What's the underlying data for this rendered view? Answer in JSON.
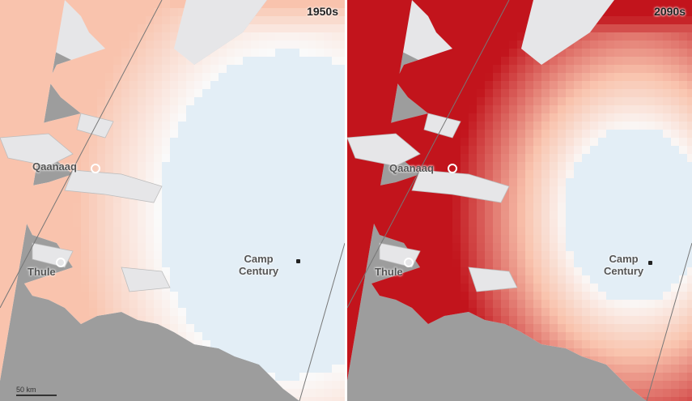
{
  "panels": [
    {
      "era": "1950s",
      "intensity": 0.35
    },
    {
      "era": "2090s",
      "intensity": 1.0
    }
  ],
  "places": {
    "qaanaaq": "Qaanaaq",
    "thule": "Thule",
    "camp_line1": "Camp",
    "camp_line2": "Century"
  },
  "scale_label": "50 km",
  "colors": {
    "land": "#e6e6e8",
    "ocean": "#9d9d9d",
    "ice_cool": "#e3eef6",
    "melt_light": "#f9c3ad",
    "melt_dark": "#c2141c"
  }
}
